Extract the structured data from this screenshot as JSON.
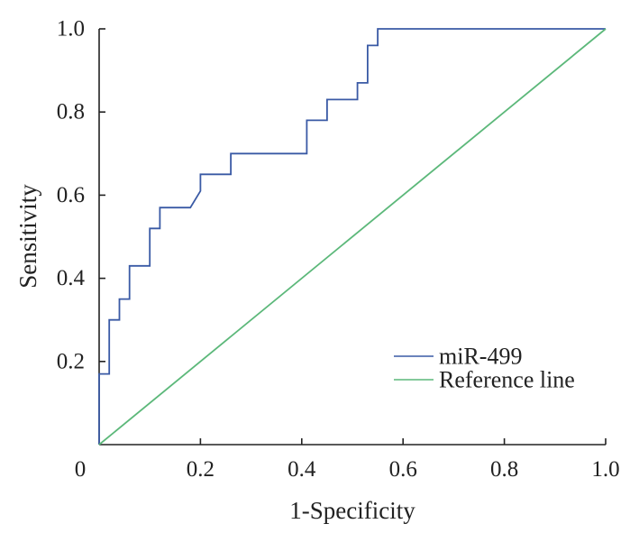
{
  "chart_data": {
    "type": "line",
    "title": "",
    "xlabel": "1-Specificity",
    "ylabel": "Sensitivity",
    "xlim": [
      0,
      1.0
    ],
    "ylim": [
      0,
      1.0
    ],
    "x_ticks": [
      0.2,
      0.4,
      0.6,
      0.8,
      1.0
    ],
    "x_tick_labels": [
      "0.2",
      "0.4",
      "0.6",
      "0.8",
      "1.0"
    ],
    "y_ticks": [
      0.2,
      0.4,
      0.6,
      0.8,
      1.0
    ],
    "y_tick_labels": [
      "0.2",
      "0.4",
      "0.6",
      "0.8",
      "1.0"
    ],
    "origin_label": "0",
    "grid": false,
    "legend_position": "bottom-right",
    "series": [
      {
        "name": "miR-499",
        "color": "#3a5aa5",
        "style": "step",
        "x": [
          0,
          0,
          0.02,
          0.02,
          0.04,
          0.04,
          0.06,
          0.06,
          0.1,
          0.1,
          0.12,
          0.12,
          0.18,
          0.2,
          0.2,
          0.26,
          0.26,
          0.41,
          0.41,
          0.45,
          0.45,
          0.51,
          0.51,
          0.53,
          0.53,
          0.55,
          0.55,
          1.0
        ],
        "y": [
          0,
          0.17,
          0.17,
          0.3,
          0.3,
          0.35,
          0.35,
          0.43,
          0.43,
          0.52,
          0.52,
          0.57,
          0.57,
          0.61,
          0.65,
          0.65,
          0.7,
          0.7,
          0.78,
          0.78,
          0.83,
          0.83,
          0.87,
          0.87,
          0.96,
          0.96,
          1.0,
          1.0
        ]
      },
      {
        "name": "Reference line",
        "color": "#5cb87a",
        "style": "line",
        "x": [
          0,
          1.0
        ],
        "y": [
          0,
          1.0
        ]
      }
    ]
  }
}
